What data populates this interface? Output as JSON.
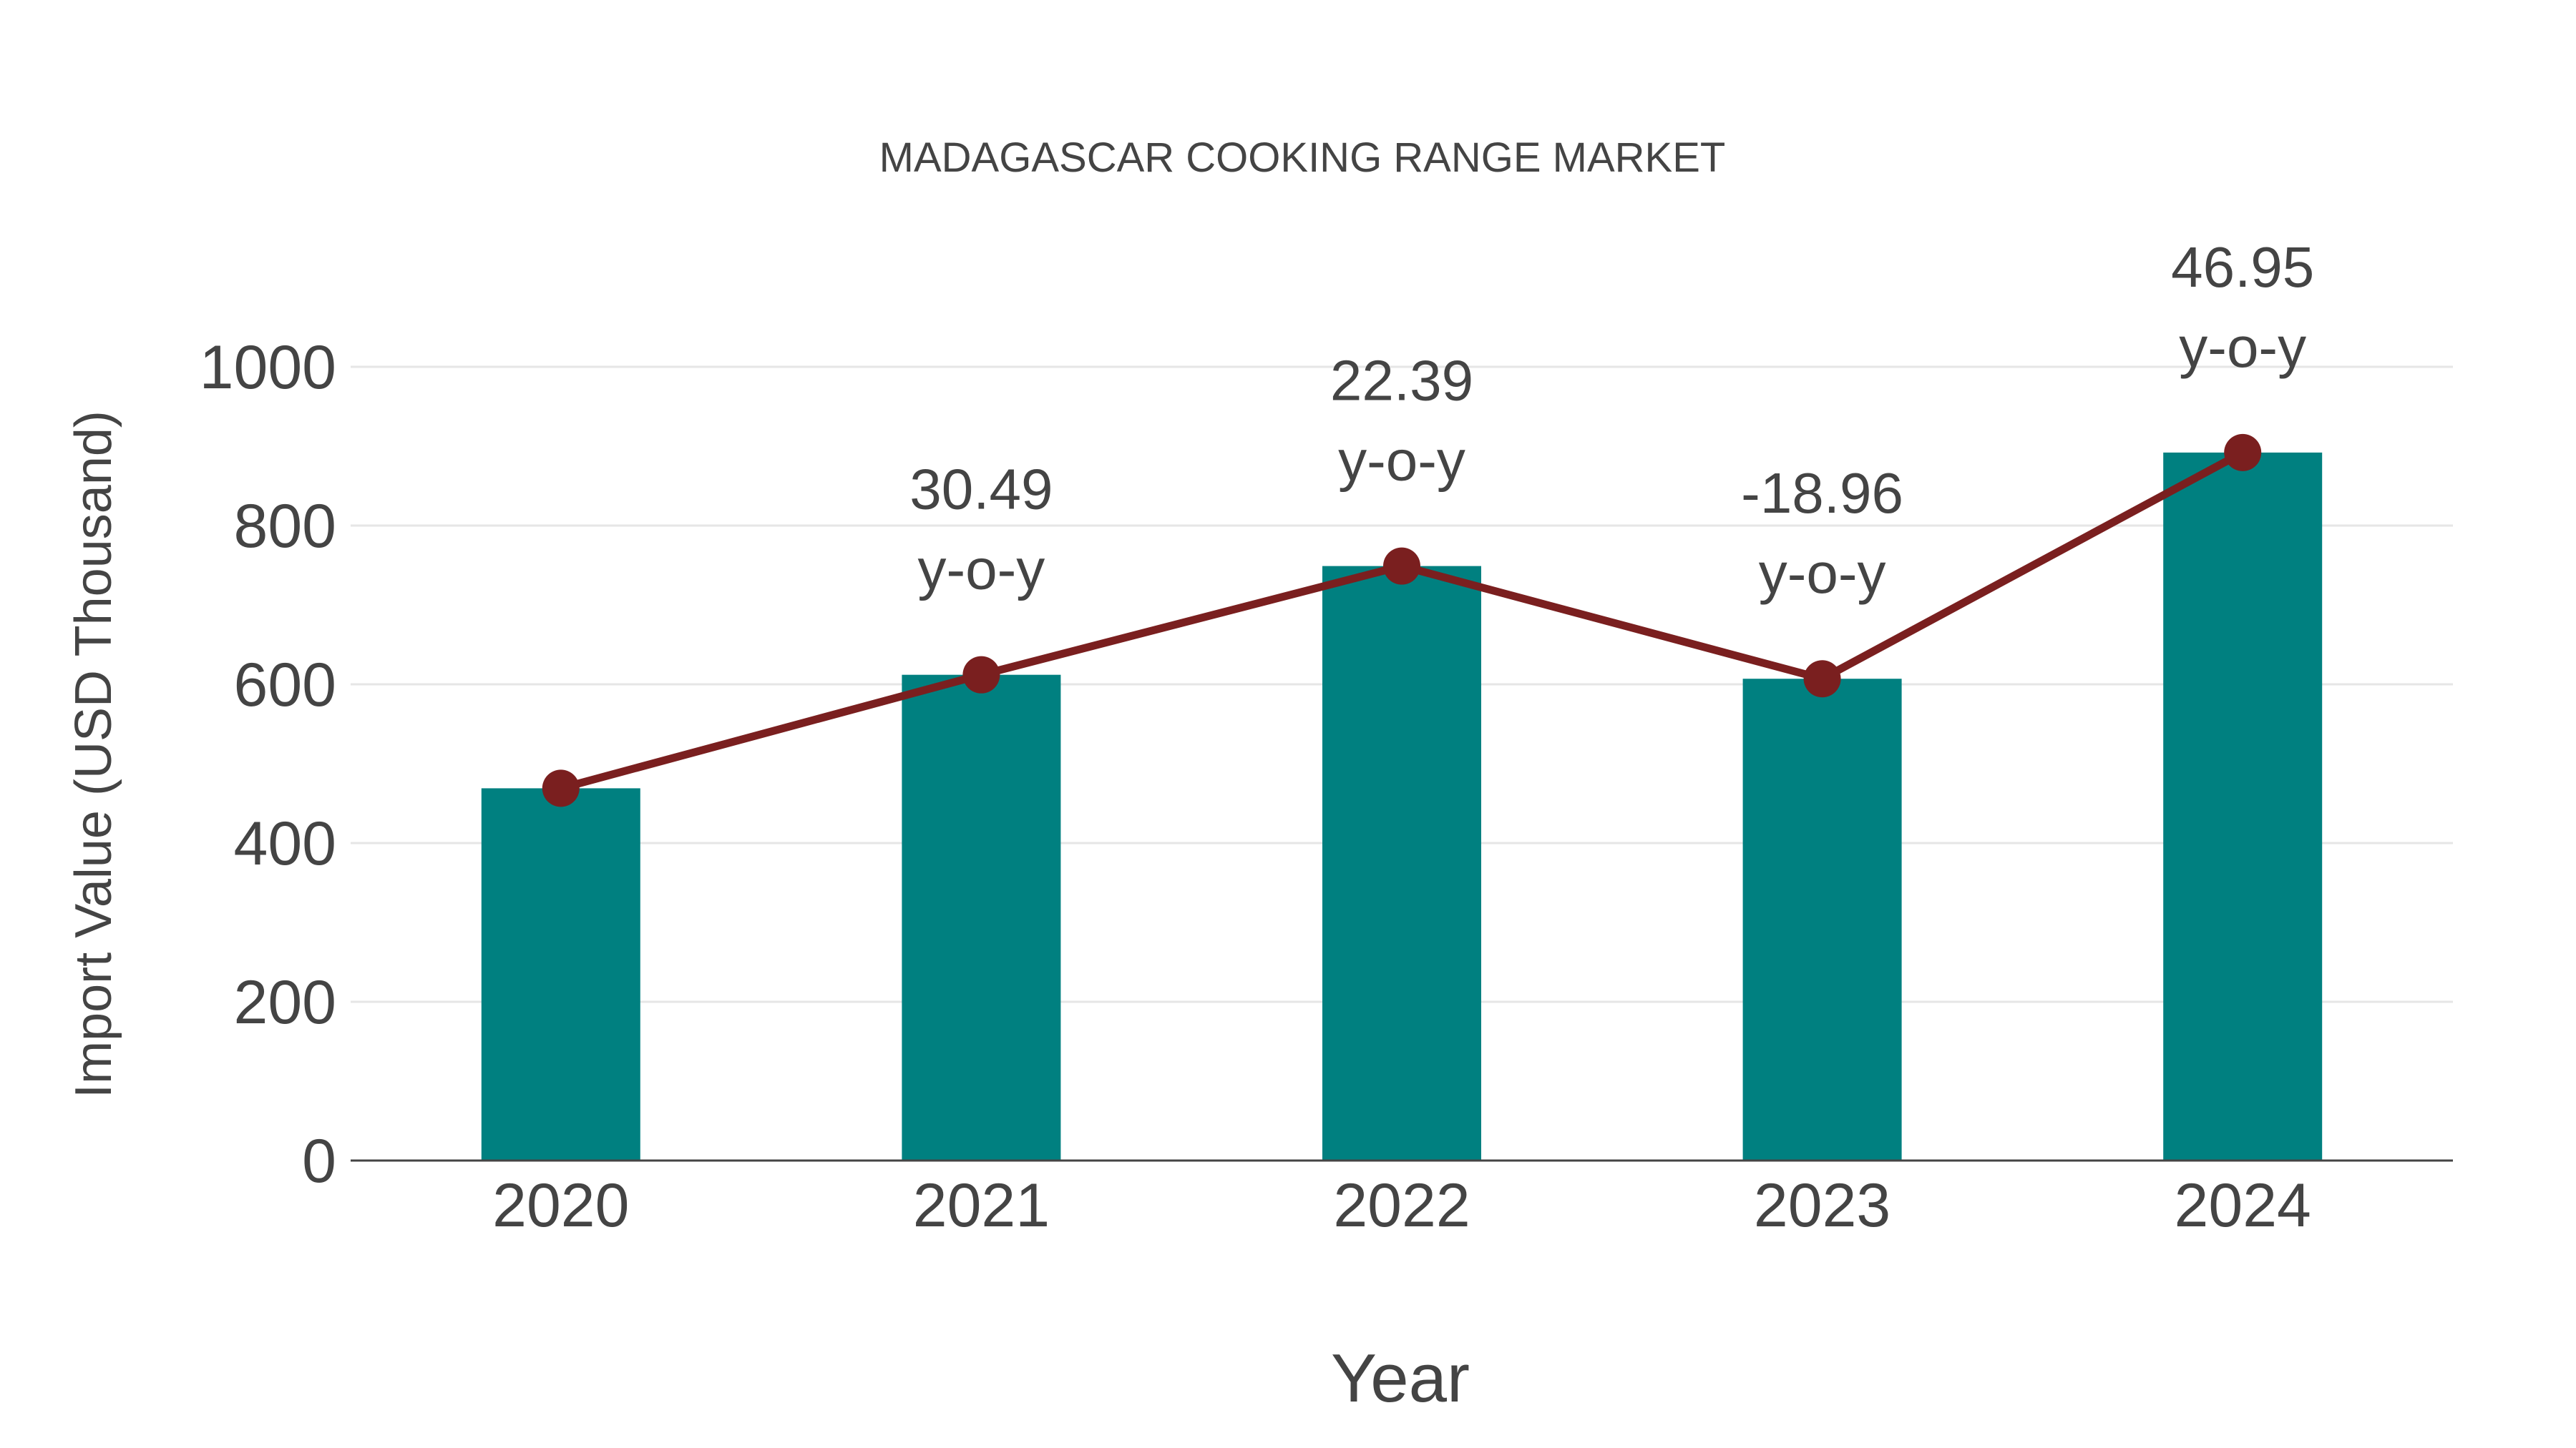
{
  "chart_data": {
    "type": "bar",
    "title": "MADAGASCAR COOKING RANGE MARKET",
    "xlabel": "Year",
    "ylabel": "Import Value (USD Thousand)",
    "categories": [
      "2020",
      "2021",
      "2022",
      "2023",
      "2024"
    ],
    "series": [
      {
        "name": "Import Value",
        "type": "bar",
        "color": "#008080",
        "values": [
          469,
          612,
          749,
          607,
          892
        ]
      },
      {
        "name": "Trend",
        "type": "line",
        "color": "#7a1f1f",
        "values": [
          469,
          612,
          749,
          607,
          892
        ]
      }
    ],
    "annotations": [
      {
        "category": "2021",
        "text_value": "30.49",
        "text_suffix": "y-o-y"
      },
      {
        "category": "2022",
        "text_value": "22.39",
        "text_suffix": "y-o-y"
      },
      {
        "category": "2023",
        "text_value": "-18.96",
        "text_suffix": "y-o-y"
      },
      {
        "category": "2024",
        "text_value": "46.95",
        "text_suffix": "y-o-y"
      }
    ],
    "yticks": [
      "0",
      "200",
      "400",
      "600",
      "800",
      "1000"
    ],
    "ylim": [
      0,
      1000
    ],
    "grid": true,
    "legend": false
  }
}
